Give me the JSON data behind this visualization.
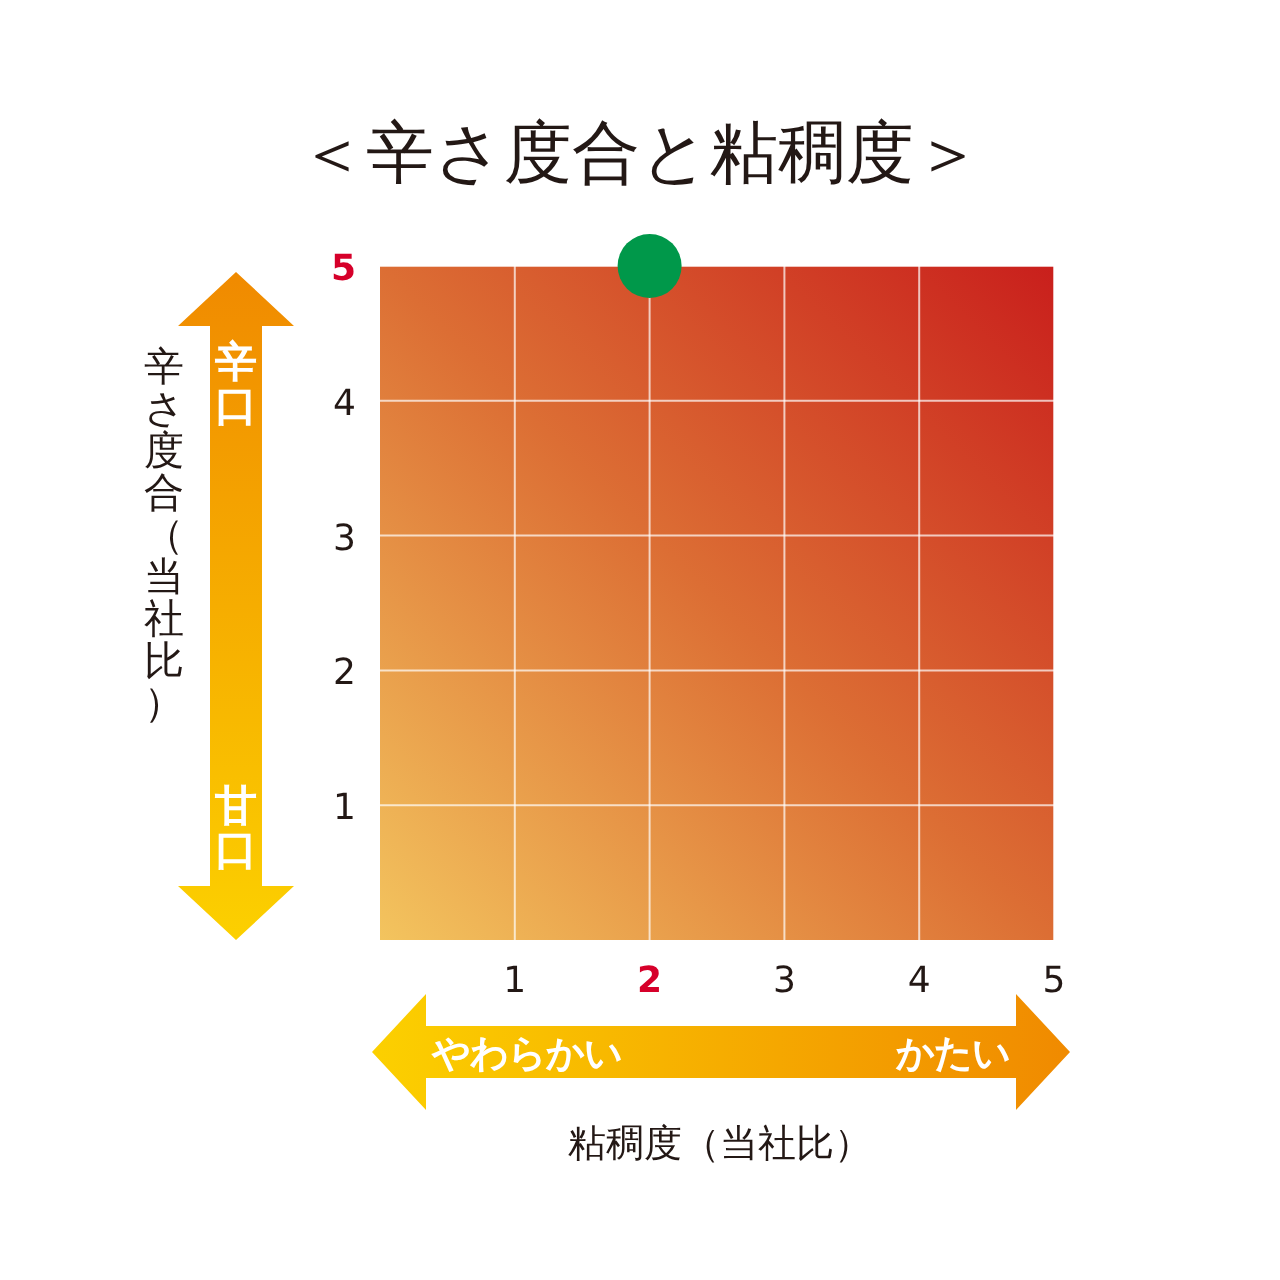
{
  "chart_data": {
    "type": "scatter",
    "title": "＜辛さ度合と粘稠度＞",
    "xlabel": "粘稠度（当社比）",
    "ylabel": "辛さ度合（当社比）",
    "x": [
      2
    ],
    "values": [
      5
    ],
    "color": "#00984a",
    "marker": "circle",
    "xlim": [
      0,
      5
    ],
    "ylim": [
      0,
      5
    ],
    "xticks": [
      1,
      2,
      3,
      4,
      5
    ],
    "yticks": [
      1,
      2,
      3,
      4,
      5
    ],
    "grid": true,
    "annotations": [
      "辛口",
      "甘口",
      "やわらかい",
      "かたい"
    ]
  }
}
